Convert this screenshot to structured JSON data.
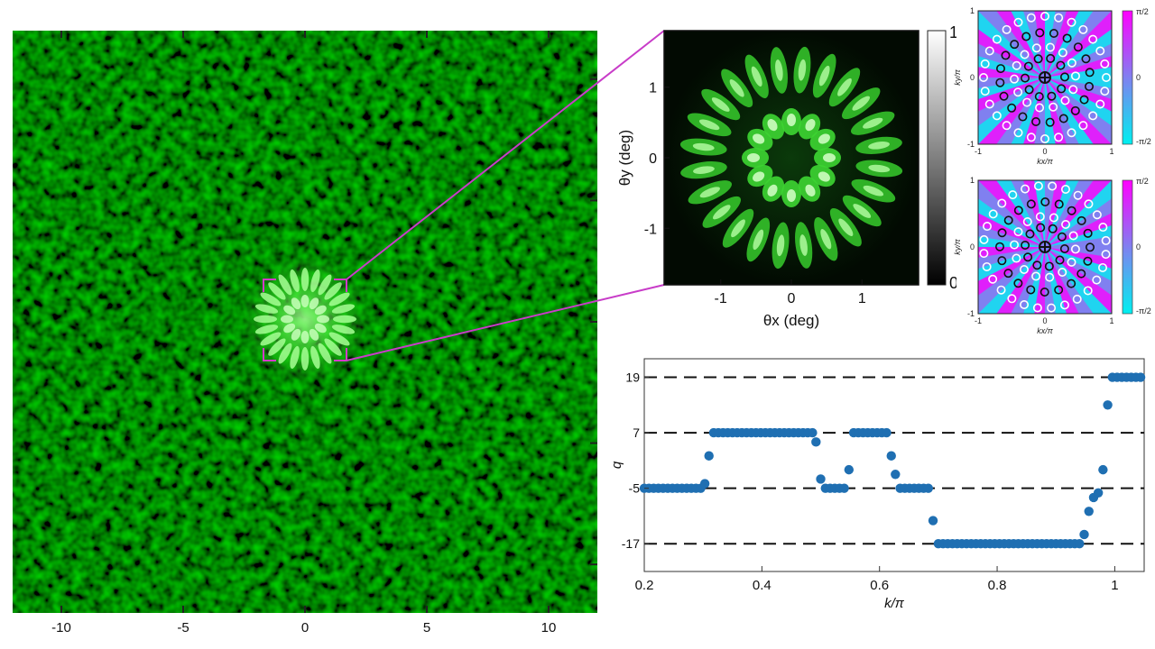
{
  "chart_data": [
    {
      "type": "heatmap",
      "panel": "far-field",
      "x_ticks": [
        "-10",
        "-5",
        "0",
        "5",
        "10"
      ],
      "xlim": [
        -12,
        12
      ],
      "colormap": [
        "#000000",
        "#39c830"
      ],
      "description_visible": "speckle intensity with central ring pattern"
    },
    {
      "type": "heatmap",
      "panel": "zoom",
      "xlabel": "θx (deg)",
      "ylabel": "θy (deg)",
      "x_ticks": [
        "-1",
        "0",
        "1"
      ],
      "y_ticks": [
        "1",
        "0",
        "-1"
      ],
      "xlim": [
        -1.8,
        1.8
      ],
      "ylim": [
        -1.8,
        1.8
      ],
      "colorbar_ticks": [
        "1",
        "0"
      ],
      "colorbar_range": [
        0,
        1
      ]
    },
    {
      "type": "scatter",
      "panel": "q-vs-k",
      "xlabel": "k/π",
      "ylabel": "q",
      "x_ticks": [
        "0.2",
        "0.4",
        "0.6",
        "0.8",
        "1"
      ],
      "y_ticks": [
        "19",
        "7",
        "-5",
        "-17"
      ],
      "xlim": [
        0.2,
        1.05
      ],
      "ylim": [
        -23,
        23
      ],
      "reference_lines": [
        19,
        7,
        -5,
        -17
      ],
      "color": "#1f6fb2",
      "x": [
        0.2,
        0.208,
        0.216,
        0.224,
        0.232,
        0.24,
        0.248,
        0.256,
        0.264,
        0.272,
        0.28,
        0.288,
        0.296,
        0.303,
        0.31,
        0.318,
        0.326,
        0.334,
        0.342,
        0.35,
        0.358,
        0.366,
        0.374,
        0.382,
        0.39,
        0.398,
        0.406,
        0.414,
        0.422,
        0.43,
        0.438,
        0.446,
        0.454,
        0.462,
        0.47,
        0.478,
        0.486,
        0.492,
        0.5,
        0.508,
        0.516,
        0.524,
        0.532,
        0.54,
        0.548,
        0.556,
        0.564,
        0.572,
        0.58,
        0.588,
        0.596,
        0.604,
        0.612,
        0.62,
        0.627,
        0.635,
        0.643,
        0.651,
        0.659,
        0.667,
        0.675,
        0.683,
        0.691,
        0.7,
        0.708,
        0.716,
        0.724,
        0.732,
        0.74,
        0.748,
        0.756,
        0.764,
        0.772,
        0.78,
        0.788,
        0.796,
        0.804,
        0.812,
        0.82,
        0.828,
        0.836,
        0.844,
        0.852,
        0.86,
        0.868,
        0.876,
        0.884,
        0.892,
        0.9,
        0.908,
        0.916,
        0.924,
        0.932,
        0.94,
        0.948,
        0.956,
        0.964,
        0.972,
        0.98,
        0.988,
        0.996,
        1.004,
        1.012,
        1.02,
        1.028,
        1.036,
        1.044
      ],
      "y": [
        -5,
        -5,
        -5,
        -5,
        -5,
        -5,
        -5,
        -5,
        -5,
        -5,
        -5,
        -5,
        -5,
        -4,
        2,
        7,
        7,
        7,
        7,
        7,
        7,
        7,
        7,
        7,
        7,
        7,
        7,
        7,
        7,
        7,
        7,
        7,
        7,
        7,
        7,
        7,
        7,
        5,
        -3,
        -5,
        -5,
        -5,
        -5,
        -5,
        -1,
        7,
        7,
        7,
        7,
        7,
        7,
        7,
        7,
        2,
        -2,
        -5,
        -5,
        -5,
        -5,
        -5,
        -5,
        -5,
        -12,
        -17,
        -17,
        -17,
        -17,
        -17,
        -17,
        -17,
        -17,
        -17,
        -17,
        -17,
        -17,
        -17,
        -17,
        -17,
        -17,
        -17,
        -17,
        -17,
        -17,
        -17,
        -17,
        -17,
        -17,
        -17,
        -17,
        -17,
        -17,
        -17,
        -17,
        -17,
        -15,
        -10,
        -7,
        -6,
        -1,
        13,
        19,
        19,
        19,
        19,
        19,
        19,
        19
      ]
    },
    {
      "type": "heatmap",
      "panel": "k-space-top",
      "xlabel": "kx/π",
      "ylabel": "ky/π",
      "x_ticks": [
        "-1",
        "0",
        "1"
      ],
      "y_ticks": [
        "1",
        "0",
        "-1"
      ],
      "colorbar_ticks": [
        "π/2",
        "0",
        "-π/2"
      ],
      "colormap": [
        "#00f0f0",
        "#8080f0",
        "#ff00ff"
      ]
    },
    {
      "type": "heatmap",
      "panel": "k-space-bottom",
      "xlabel": "kx/π",
      "ylabel": "ky/π",
      "x_ticks": [
        "-1",
        "0",
        "1"
      ],
      "y_ticks": [
        "1",
        "0",
        "-1"
      ],
      "colorbar_ticks": [
        "π/2",
        "0",
        "-π/2"
      ],
      "colormap": [
        "#00f0f0",
        "#8080f0",
        "#ff00ff"
      ]
    }
  ]
}
